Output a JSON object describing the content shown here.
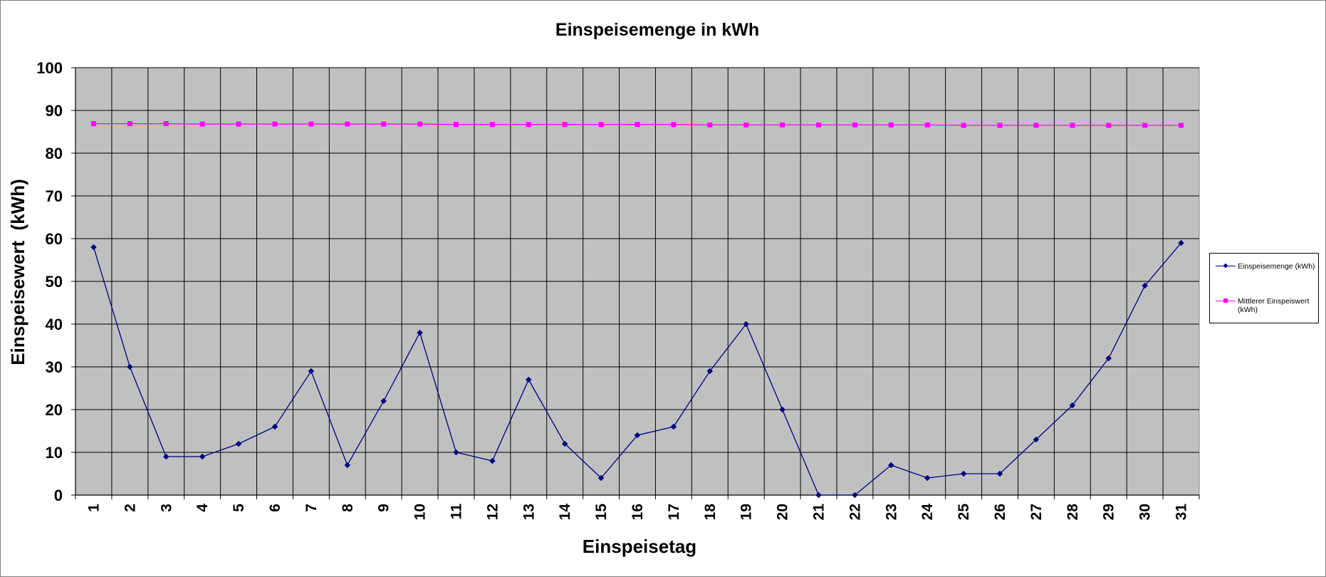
{
  "chart_data": {
    "type": "line",
    "title": "Einspeisemenge in kWh",
    "xlabel": "Einspeisetag",
    "ylabel": "Einspeisewert  (kWh)",
    "categories": [
      "1",
      "2",
      "3",
      "4",
      "5",
      "6",
      "7",
      "8",
      "9",
      "10",
      "11",
      "12",
      "13",
      "14",
      "15",
      "16",
      "17",
      "18",
      "19",
      "20",
      "21",
      "22",
      "23",
      "24",
      "25",
      "26",
      "27",
      "28",
      "29",
      "30",
      "31"
    ],
    "ylim": [
      0,
      100
    ],
    "yticks": [
      "0",
      "10",
      "20",
      "30",
      "40",
      "50",
      "60",
      "70",
      "80",
      "90",
      "100"
    ],
    "grid": true,
    "legend_position": "right",
    "plot_background": "#c0c0c0",
    "series": [
      {
        "name": "Einspeisemenge (kWh)",
        "color": "#000080",
        "marker": "diamond",
        "values": [
          58,
          30,
          9,
          9,
          12,
          16,
          29,
          7,
          22,
          38,
          10,
          8,
          27,
          12,
          4,
          14,
          16,
          29,
          40,
          20,
          0,
          0,
          7,
          4,
          5,
          5,
          13,
          21,
          32,
          49,
          59
        ]
      },
      {
        "name": "Mittlerer Einspeiswert (kWh)",
        "color": "#ff00ff",
        "marker": "square",
        "values": [
          86.9,
          86.9,
          86.9,
          86.8,
          86.8,
          86.8,
          86.8,
          86.8,
          86.8,
          86.8,
          86.7,
          86.7,
          86.7,
          86.7,
          86.7,
          86.7,
          86.7,
          86.6,
          86.6,
          86.6,
          86.6,
          86.6,
          86.6,
          86.6,
          86.5,
          86.5,
          86.5,
          86.5,
          86.5,
          86.5,
          86.5
        ]
      }
    ]
  }
}
